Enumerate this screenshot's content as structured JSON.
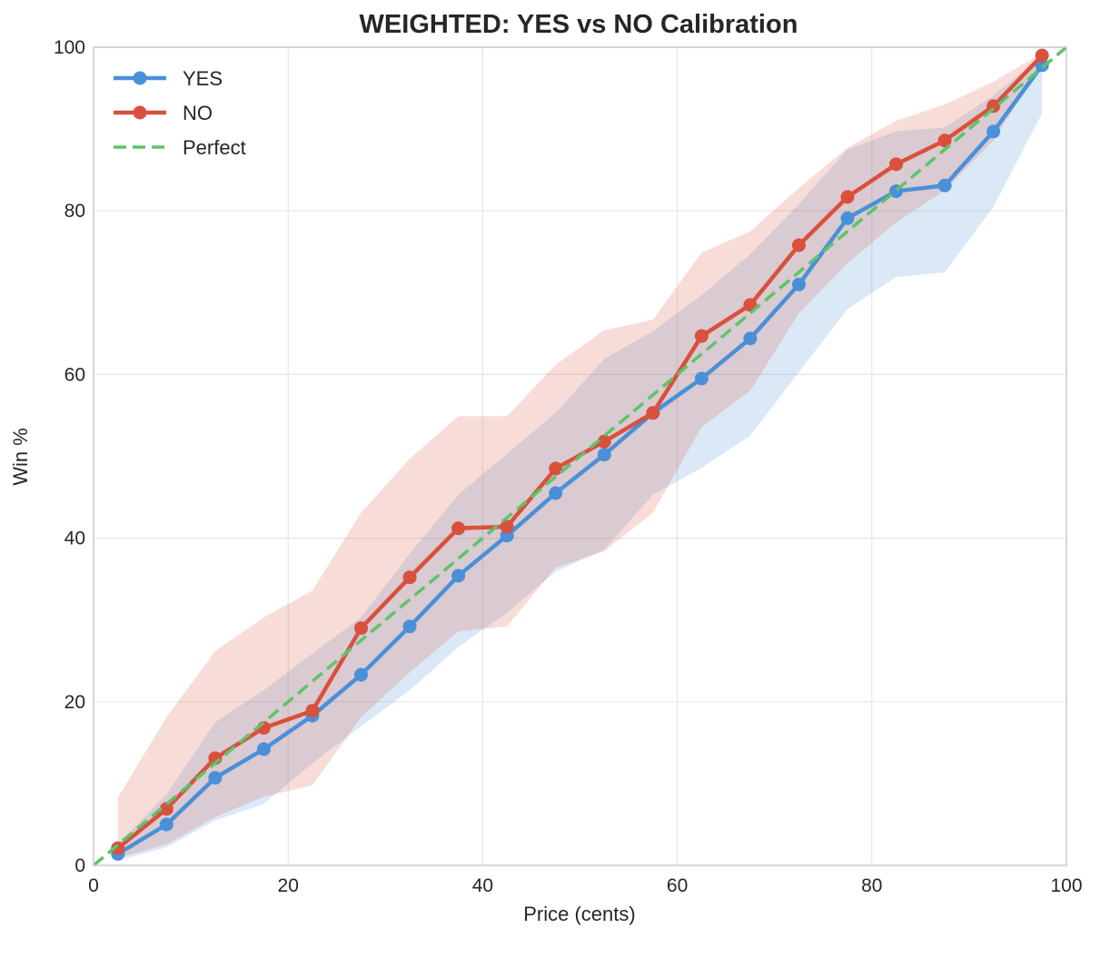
{
  "chart_data": {
    "type": "line",
    "title": "WEIGHTED: YES vs NO Calibration",
    "xlabel": "Price (cents)",
    "ylabel": "Win %",
    "xlim": [
      0,
      100
    ],
    "ylim": [
      0,
      100
    ],
    "xticks": [
      0,
      20,
      40,
      60,
      80,
      100
    ],
    "yticks": [
      0,
      20,
      40,
      60,
      80,
      100
    ],
    "grid": true,
    "legend_position": "top-left",
    "x": [
      2.5,
      7.5,
      12.5,
      17.5,
      22.5,
      27.5,
      32.5,
      37.5,
      42.5,
      47.5,
      52.5,
      57.5,
      62.5,
      67.5,
      72.5,
      77.5,
      82.5,
      87.5,
      92.5,
      97.5
    ],
    "series": [
      {
        "name": "YES",
        "color": "#4a90d9",
        "values": [
          1.4,
          5.0,
          10.7,
          14.2,
          18.3,
          23.3,
          29.2,
          35.4,
          40.3,
          45.5,
          50.2,
          55.3,
          59.5,
          64.4,
          71.0,
          79.1,
          82.4,
          83.1,
          89.7,
          97.8
        ],
        "band_lower": [
          0.6,
          2.2,
          5.5,
          7.5,
          12.5,
          17.0,
          21.4,
          26.7,
          30.9,
          35.9,
          38.6,
          45.3,
          48.6,
          52.5,
          60.3,
          68.0,
          71.9,
          72.5,
          80.5,
          91.9
        ],
        "band_upper": [
          2.6,
          8.7,
          17.5,
          21.4,
          25.9,
          30.3,
          38.1,
          45.3,
          50.3,
          55.3,
          61.9,
          65.3,
          69.7,
          74.7,
          80.8,
          87.5,
          89.7,
          90.2,
          94.1,
          98.9
        ]
      },
      {
        "name": "NO",
        "color": "#d9503c",
        "values": [
          2.1,
          6.9,
          13.1,
          16.8,
          18.9,
          29.0,
          35.2,
          41.2,
          41.4,
          48.5,
          51.8,
          55.3,
          64.7,
          68.5,
          75.8,
          81.7,
          85.7,
          88.6,
          92.8,
          99.0
        ],
        "band_lower": [
          0.9,
          2.6,
          5.9,
          8.4,
          9.8,
          18.1,
          23.6,
          28.6,
          29.2,
          36.4,
          38.4,
          43.1,
          53.6,
          58.0,
          67.5,
          73.6,
          78.6,
          82.5,
          88.6,
          98.0
        ],
        "band_upper": [
          8.3,
          18.1,
          26.2,
          30.3,
          33.6,
          43.1,
          49.7,
          54.9,
          54.9,
          61.2,
          65.4,
          66.7,
          74.9,
          77.5,
          82.8,
          87.7,
          91.0,
          93.0,
          95.8,
          99.3
        ]
      },
      {
        "name": "Perfect",
        "color": "#5cc46a",
        "x": [
          0,
          100
        ],
        "values": [
          0,
          100
        ],
        "style": "dashed"
      }
    ]
  }
}
